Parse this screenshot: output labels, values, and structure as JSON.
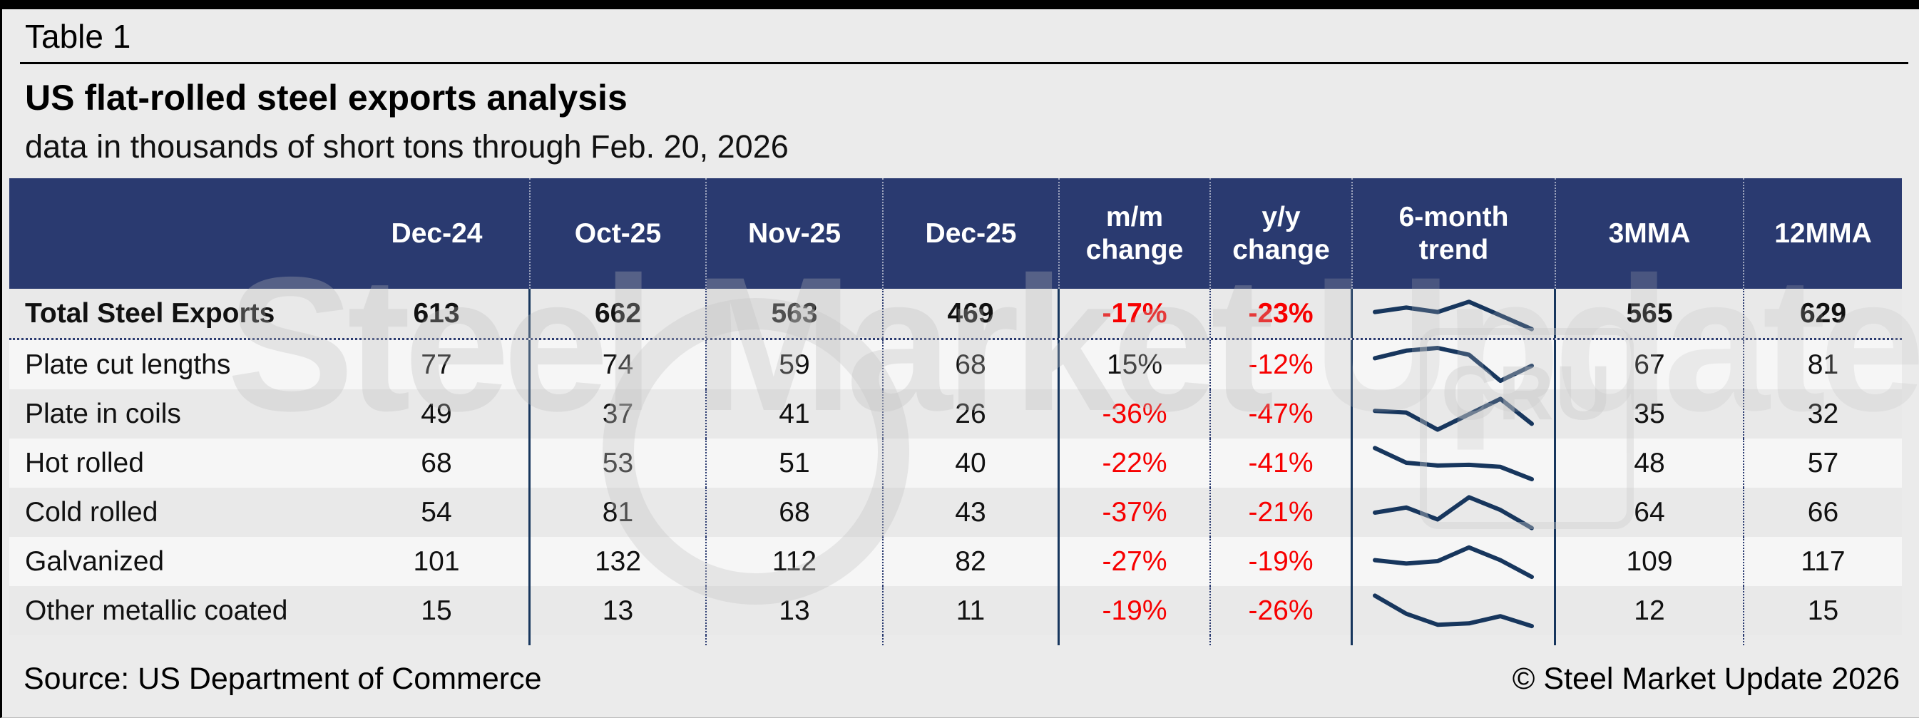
{
  "header": {
    "table_label": "Table 1",
    "title": "US flat-rolled steel exports analysis",
    "subtitle": "data in thousands of short tons through Feb. 20, 2026"
  },
  "footer": {
    "source": "Source: US Department of Commerce",
    "copyright": "© Steel Market Update 2026"
  },
  "watermark": {
    "brand_primary": "Steel Market",
    "brand_secondary": " Update",
    "logo": "CRU"
  },
  "colors": {
    "header_bg": "#2a3a70",
    "grid_navy": "#17365d",
    "negative_red": "#f70000",
    "row_odd": "#e9e9e9",
    "row_even": "#f6f6f6",
    "page_bg": "#ebebeb"
  },
  "chart_data": {
    "type": "table",
    "title": "US flat-rolled steel exports analysis",
    "units": "thousands of short tons",
    "through": "Feb. 20, 2026",
    "columns": [
      "",
      "Dec-24",
      "Oct-25",
      "Nov-25",
      "Dec-25",
      "m/m change",
      "y/y change",
      "6-month trend",
      "3MMA",
      "12MMA"
    ],
    "header_lines": {
      "mm": [
        "m/m",
        "change"
      ],
      "yy": [
        "y/y",
        "change"
      ],
      "trend": [
        "6-month",
        "trend"
      ]
    },
    "rows": [
      {
        "label": "Total Steel Exports",
        "dec24": "613",
        "oct25": "662",
        "nov25": "563",
        "dec25": "469",
        "mm_change": "-17%",
        "yy_change": "-23%",
        "trend_spark": [
          55,
          68,
          55,
          85,
          45,
          5
        ],
        "mma3": "565",
        "mma12": "629",
        "emphasis": true
      },
      {
        "label": "Plate cut lengths",
        "dec24": "77",
        "oct25": "74",
        "nov25": "59",
        "dec25": "68",
        "mm_change": "15%",
        "yy_change": "-12%",
        "trend_spark": [
          70,
          92,
          100,
          80,
          4,
          48
        ],
        "mma3": "67",
        "mma12": "81",
        "emphasis": false
      },
      {
        "label": "Plate in coils",
        "dec24": "49",
        "oct25": "37",
        "nov25": "41",
        "dec25": "26",
        "mm_change": "-36%",
        "yy_change": "-47%",
        "trend_spark": [
          60,
          55,
          5,
          50,
          95,
          22
        ],
        "mma3": "35",
        "mma12": "32",
        "emphasis": false
      },
      {
        "label": "Hot rolled",
        "dec24": "68",
        "oct25": "53",
        "nov25": "51",
        "dec25": "40",
        "mm_change": "-22%",
        "yy_change": "-41%",
        "trend_spark": [
          95,
          52,
          44,
          46,
          40,
          4
        ],
        "mma3": "48",
        "mma12": "57",
        "emphasis": false
      },
      {
        "label": "Cold rolled",
        "dec24": "54",
        "oct25": "81",
        "nov25": "68",
        "dec25": "43",
        "mm_change": "-37%",
        "yy_change": "-21%",
        "trend_spark": [
          50,
          65,
          30,
          95,
          58,
          5
        ],
        "mma3": "64",
        "mma12": "66",
        "emphasis": false
      },
      {
        "label": "Galvanized",
        "dec24": "101",
        "oct25": "132",
        "nov25": "112",
        "dec25": "82",
        "mm_change": "-27%",
        "yy_change": "-19%",
        "trend_spark": [
          55,
          45,
          52,
          92,
          55,
          6
        ],
        "mma3": "109",
        "mma12": "117",
        "emphasis": false
      },
      {
        "label": "Other metallic coated",
        "dec24": "15",
        "oct25": "13",
        "nov25": "13",
        "dec25": "11",
        "mm_change": "-19%",
        "yy_change": "-26%",
        "trend_spark": [
          95,
          42,
          10,
          14,
          35,
          6
        ],
        "mma3": "12",
        "mma12": "15",
        "emphasis": false
      }
    ]
  }
}
